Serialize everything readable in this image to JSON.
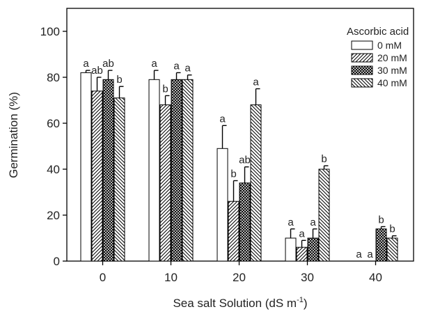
{
  "chart_data": {
    "type": "bar",
    "title": "",
    "xlabel": "Sea salt Solution (dS m",
    "xlabel_sup": "-1",
    "xlabel_suffix": ")",
    "ylabel": "Germination (%)",
    "ylim": [
      0,
      100
    ],
    "yticks": [
      0,
      20,
      40,
      60,
      80,
      100
    ],
    "categories": [
      "0",
      "10",
      "20",
      "30",
      "40"
    ],
    "legend": {
      "title": "Ascorbic acid",
      "placement": "top-right"
    },
    "series": [
      {
        "name": "0 mM",
        "pattern": "none",
        "values": [
          82,
          79,
          49,
          10,
          0
        ],
        "errors": [
          1,
          4,
          10,
          4,
          0
        ],
        "labels": [
          "a",
          "a",
          "a",
          "a",
          "a"
        ]
      },
      {
        "name": "20 mM",
        "pattern": "hatch-forward",
        "values": [
          74,
          68,
          26,
          6,
          0
        ],
        "errors": [
          6,
          4,
          9,
          3,
          0
        ],
        "labels": [
          "ab",
          "b",
          "b",
          "a",
          "a"
        ]
      },
      {
        "name": "30 mM",
        "pattern": "crosshatch",
        "values": [
          79,
          79,
          34,
          10,
          14
        ],
        "errors": [
          4,
          3,
          7,
          4,
          1
        ],
        "labels": [
          "ab",
          "a",
          "ab",
          "a",
          "b"
        ]
      },
      {
        "name": "40 mM",
        "pattern": "hatch-back",
        "values": [
          71,
          79,
          68,
          40,
          10
        ],
        "errors": [
          5,
          2,
          7,
          1.5,
          1
        ],
        "labels": [
          "b",
          "a",
          "a",
          "b",
          "b"
        ]
      }
    ]
  }
}
